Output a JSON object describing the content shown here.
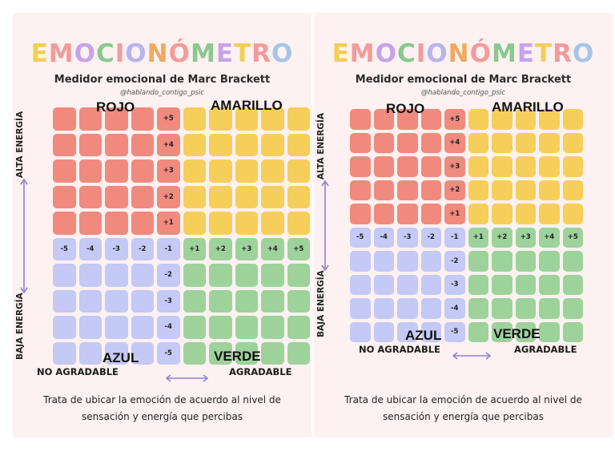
{
  "panels": [
    {
      "title": "EMOCIONÓMETRO",
      "subtitle": "Medidor emocional de Marc Brackett",
      "handle": "@hablando_contigo_psic",
      "quadrants": {
        "red": "ROJO",
        "yellow": "AMARILLO",
        "blue": "AZUL",
        "green": "VERDE"
      },
      "energy": {
        "high": "ALTA ENERGÍA",
        "low": "BAJA ENERGÍA"
      },
      "pleasantness": {
        "unpleasant": "NO AGRADABLE",
        "pleasant": "AGRADABLE"
      },
      "footer_line1": "Trata de ubicar la emoción de acuerdo al nivel de",
      "footer_line2": "sensación y energía que percibas"
    },
    {
      "title": "EMOCIONÓMETRO",
      "subtitle": "Medidor emocional de Marc Brackett",
      "handle": "@hablando_contigo_psic",
      "quadrants": {
        "red": "ROJO",
        "yellow": "AMARILLO",
        "blue": "AZUL",
        "green": "VERDE"
      },
      "energy": {
        "high": "ALTA ENERGÍA",
        "low": "BAJA ENERGÍA"
      },
      "pleasantness": {
        "unpleasant": "NO AGRADABLE",
        "pleasant": "AGRADABLE"
      },
      "footer_line1": "Trata de ubicar la emoción de acuerdo al nivel de",
      "footer_line2": "sensación y energía que percibas"
    }
  ],
  "grid": {
    "rows": 10,
    "cols": 10,
    "energy_axis_labels": [
      "+5",
      "+4",
      "+3",
      "+2",
      "+1",
      "-1",
      "-2",
      "-3",
      "-4",
      "-5"
    ],
    "pleasantness_axis_labels": [
      "-5",
      "-4",
      "-3",
      "-2",
      "-1",
      "+1",
      "+2",
      "+3",
      "+4",
      "+5"
    ]
  },
  "colors": {
    "red": "#f08a7e",
    "yellow": "#f6cf5b",
    "blue": "#c4c9f5",
    "green": "#9dd39b",
    "arrow": "#8a84d6",
    "title_letters": [
      "#f2ce56",
      "#f29b9b",
      "#c6a3e8",
      "#89c98f",
      "#f29b9b",
      "#b7b5ec",
      "#f0a95f",
      "#f29b9b",
      "#89c98f",
      "#c6a3e8",
      "#f2ce56",
      "#f29b9b",
      "#a6c5e8"
    ]
  }
}
